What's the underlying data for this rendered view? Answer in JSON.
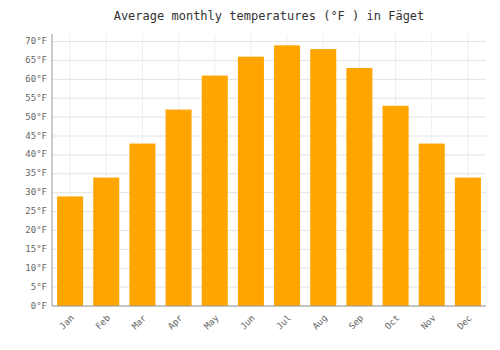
{
  "chart_data": {
    "type": "bar",
    "title": "Average monthly temperatures (°F ) in Fäget",
    "categories": [
      "Jan",
      "Feb",
      "Mar",
      "Apr",
      "May",
      "Jun",
      "Jul",
      "Aug",
      "Sep",
      "Oct",
      "Nov",
      "Dec"
    ],
    "values": [
      29,
      34,
      43,
      52,
      61,
      66,
      69,
      68,
      63,
      53,
      43,
      34
    ],
    "color": "#FFA500",
    "ylim": [
      0,
      72
    ],
    "yticks": [
      {
        "value": 0,
        "label": "0°F"
      },
      {
        "value": 5,
        "label": "5°F"
      },
      {
        "value": 10,
        "label": "10°F"
      },
      {
        "value": 15,
        "label": "15°F"
      },
      {
        "value": 20,
        "label": "20°F"
      },
      {
        "value": 25,
        "label": "25°F"
      },
      {
        "value": 30,
        "label": "30°F"
      },
      {
        "value": 35,
        "label": "35°F"
      },
      {
        "value": 40,
        "label": "40°F"
      },
      {
        "value": 45,
        "label": "45°F"
      },
      {
        "value": 50,
        "label": "50°F"
      },
      {
        "value": 55,
        "label": "55°F"
      },
      {
        "value": 60,
        "label": "60°F"
      },
      {
        "value": 65,
        "label": "65°F"
      },
      {
        "value": 70,
        "label": "70°F"
      }
    ],
    "grid": true
  }
}
